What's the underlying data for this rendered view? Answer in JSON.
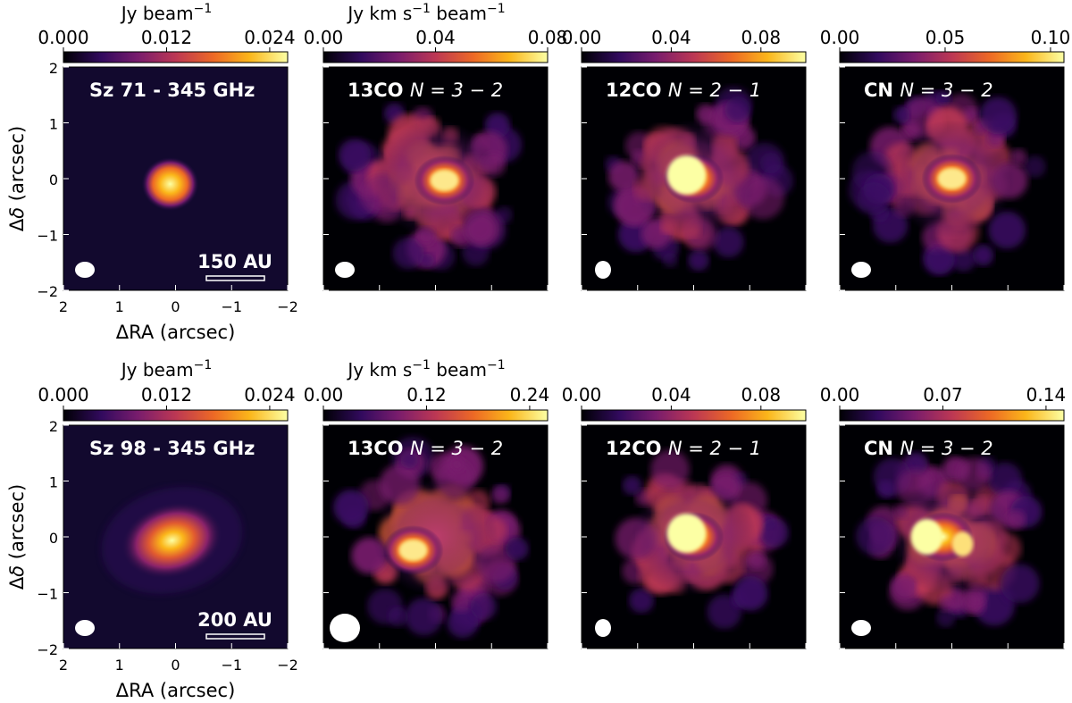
{
  "figure": {
    "rows": [
      {
        "source": "Sz 71",
        "continuum_title": "Sz 71 - 345 GHz",
        "scale_bar_label": "150 AU",
        "panels": [
          {
            "kind": "continuum",
            "title": "Sz 71 - 345 GHz",
            "title_molecule": "",
            "title_transition": "",
            "colorbar": {
              "unit": "Jy beam",
              "unit_exp": "−1",
              "ticks": [
                "0.000",
                "0.012",
                "0.024"
              ],
              "tick_fractions": [
                0,
                0.46,
                0.92
              ]
            }
          },
          {
            "kind": "line",
            "title": "",
            "title_molecule": "13CO",
            "title_transition": "N = 3 − 2",
            "colorbar": {
              "unit": "Jy km s",
              "unit_exp": "−1",
              "unit_tail": "beam",
              "unit_tail_exp": "−1",
              "ticks": [
                "0.00",
                "0.04",
                "0.08"
              ],
              "tick_fractions": [
                0,
                0.5,
                1.0
              ]
            }
          },
          {
            "kind": "line",
            "title": "",
            "title_molecule": "12CO",
            "title_transition": "N = 2 − 1",
            "colorbar": {
              "ticks": [
                "0.00",
                "0.04",
                "0.08"
              ],
              "tick_fractions": [
                0,
                0.4,
                0.8
              ]
            }
          },
          {
            "kind": "line",
            "title": "",
            "title_molecule": "CN",
            "title_transition": "N = 3 − 2",
            "colorbar": {
              "ticks": [
                "0.00",
                "0.05",
                "0.10"
              ],
              "tick_fractions": [
                0,
                0.47,
                0.94
              ]
            }
          }
        ]
      },
      {
        "source": "Sz 98",
        "continuum_title": "Sz 98 - 345 GHz",
        "scale_bar_label": "200 AU",
        "panels": [
          {
            "kind": "continuum",
            "title": "Sz 98 - 345 GHz",
            "title_molecule": "",
            "title_transition": "",
            "colorbar": {
              "unit": "Jy beam",
              "unit_exp": "−1",
              "ticks": [
                "0.000",
                "0.012",
                "0.024"
              ],
              "tick_fractions": [
                0,
                0.46,
                0.92
              ]
            }
          },
          {
            "kind": "line",
            "title": "",
            "title_molecule": "13CO",
            "title_transition": "N = 3 − 2",
            "colorbar": {
              "unit": "Jy km s",
              "unit_exp": "−1",
              "unit_tail": "beam",
              "unit_tail_exp": "−1",
              "ticks": [
                "0.00",
                "0.12",
                "0.24"
              ],
              "tick_fractions": [
                0,
                0.46,
                0.92
              ]
            }
          },
          {
            "kind": "line",
            "title": "",
            "title_molecule": "12CO",
            "title_transition": "N = 2 − 1",
            "colorbar": {
              "ticks": [
                "0.00",
                "0.04",
                "0.08"
              ],
              "tick_fractions": [
                0,
                0.4,
                0.8
              ]
            }
          },
          {
            "kind": "line",
            "title": "",
            "title_molecule": "CN",
            "title_transition": "N = 3 − 2",
            "colorbar": {
              "ticks": [
                "0.00",
                "0.07",
                "0.14"
              ],
              "tick_fractions": [
                0,
                0.46,
                0.92
              ]
            }
          }
        ]
      }
    ],
    "axes": {
      "x_label": "ΔRA (arcsec)",
      "y_label_prefix": "Δ",
      "y_label_symbol": "δ",
      "y_label_suffix": " (arcsec)",
      "x_ticks": [
        "2",
        "1",
        "0",
        "−1",
        "−2"
      ],
      "x_tick_values": [
        2,
        1,
        0,
        -1,
        -2
      ],
      "y_ticks": [
        "2",
        "1",
        "0",
        "−1",
        "−2"
      ],
      "y_tick_values": [
        2,
        1,
        0,
        -1,
        -2
      ],
      "range_arcsec": [
        -2,
        2
      ]
    },
    "colormap_stops": [
      "#000004",
      "#320a5e",
      "#781c6d",
      "#bc3754",
      "#ed6925",
      "#fbb61a",
      "#fcffa4"
    ]
  }
}
